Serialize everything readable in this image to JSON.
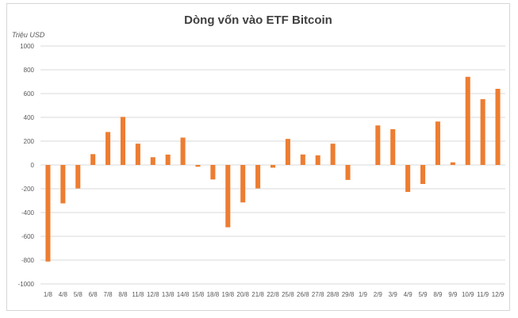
{
  "chart_data": {
    "type": "bar",
    "title": "Dòng vốn vào ETF Bitcoin",
    "ylabel": "Triệu USD",
    "xlabel": "",
    "ylim": [
      -1000,
      1000
    ],
    "yticks": [
      "1000",
      "800",
      "600",
      "400",
      "200",
      "0",
      "-200",
      "-400",
      "-600",
      "-800",
      "-1000"
    ],
    "grid": true,
    "legend": "none",
    "bar_color": "#ED7D31",
    "categories": [
      "1/8",
      "4/8",
      "5/8",
      "6/8",
      "7/8",
      "8/8",
      "11/8",
      "12/8",
      "13/8",
      "14/8",
      "15/8",
      "18/8",
      "19/8",
      "20/8",
      "21/8",
      "22/8",
      "25/8",
      "26/8",
      "27/8",
      "28/8",
      "29/8",
      "1/9",
      "2/9",
      "3/9",
      "4/9",
      "5/9",
      "8/9",
      "9/9",
      "10/9",
      "11/9",
      "12/9"
    ],
    "values": [
      -812,
      -323,
      -197,
      91,
      277,
      404,
      179,
      65,
      87,
      230,
      -15,
      -122,
      -524,
      -315,
      -197,
      -23,
      219,
      88,
      81,
      179,
      -126,
      0,
      332,
      301,
      -227,
      -160,
      365,
      22,
      741,
      553,
      640
    ]
  }
}
